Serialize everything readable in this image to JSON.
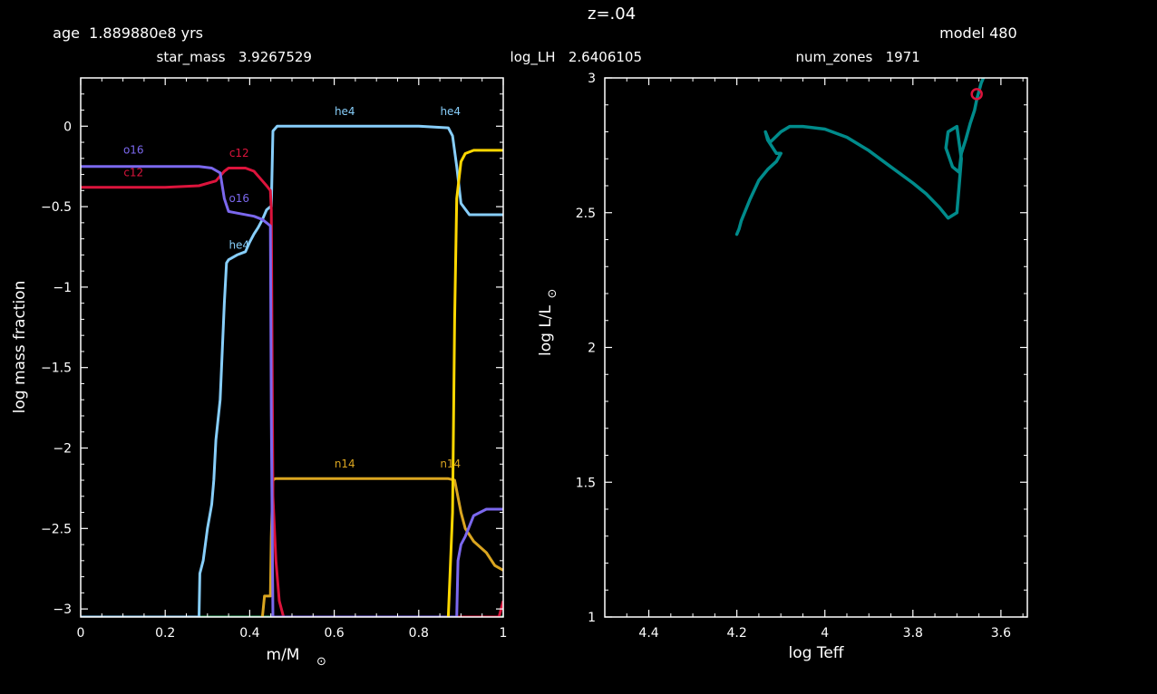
{
  "header": {
    "age_label": "age",
    "age_value": "1.889880e8",
    "age_unit": "yrs",
    "z_label": "z=.04",
    "model_label": "model",
    "model_value": "480",
    "star_mass_label": "star_mass",
    "star_mass_value": "3.9267529",
    "log_lh_label": "log_LH",
    "log_lh_value": "2.6406105",
    "num_zones_label": "num_zones",
    "num_zones_value": "1971"
  },
  "chart_data": [
    {
      "type": "line",
      "ylabel": "log mass fraction",
      "xlabel_main": "m/M",
      "xlabel_sub": "⊙",
      "xlim": [
        0,
        1
      ],
      "ylim": [
        -3.05,
        0.3
      ],
      "xticks": [
        0,
        0.2,
        0.4,
        0.6,
        0.8,
        1
      ],
      "xtick_labels": [
        "0",
        "0.2",
        "0.4",
        "0.6",
        "0.8",
        "1"
      ],
      "yticks": [
        0,
        -0.5,
        -1,
        -1.5,
        -2,
        -2.5,
        -3
      ],
      "ytick_labels": [
        "0",
        "−0.5",
        "−1",
        "−1.5",
        "−2",
        "−2.5",
        "−3"
      ],
      "colors": {
        "he4": "#87cefa",
        "c12": "#dc143c",
        "o16": "#7b68ee",
        "n14": "#daa520",
        "h1": "#ffd700",
        "other": "#3cb371"
      },
      "series": [
        {
          "name": "o16",
          "color": "#7b68ee",
          "x": [
            0,
            0.1,
            0.2,
            0.28,
            0.31,
            0.33,
            0.34,
            0.35,
            0.37,
            0.41,
            0.43,
            0.44,
            0.449,
            0.451,
            0.455,
            0.87,
            0.885,
            0.89,
            0.893,
            0.9,
            0.91,
            0.93,
            0.96,
            1
          ],
          "y": [
            -0.25,
            -0.25,
            -0.25,
            -0.25,
            -0.26,
            -0.29,
            -0.45,
            -0.53,
            -0.54,
            -0.56,
            -0.58,
            -0.6,
            -0.62,
            -1.8,
            -3.05,
            -3.05,
            -3.05,
            -3.05,
            -2.7,
            -2.6,
            -2.55,
            -2.42,
            -2.38,
            -2.38
          ]
        },
        {
          "name": "c12",
          "color": "#dc143c",
          "x": [
            0,
            0.1,
            0.2,
            0.28,
            0.32,
            0.34,
            0.35,
            0.39,
            0.41,
            0.42,
            0.43,
            0.44,
            0.449,
            0.451,
            0.455,
            0.462,
            0.47,
            0.48,
            0.5,
            0.99,
            1
          ],
          "y": [
            -0.38,
            -0.38,
            -0.38,
            -0.37,
            -0.34,
            -0.28,
            -0.26,
            -0.26,
            -0.28,
            -0.31,
            -0.34,
            -0.37,
            -0.4,
            -0.52,
            -2.3,
            -2.7,
            -2.95,
            -3.05,
            -3.05,
            -3.05,
            -2.95
          ]
        },
        {
          "name": "he4",
          "color": "#87cefa",
          "x": [
            0,
            0.28,
            0.282,
            0.29,
            0.3,
            0.31,
            0.315,
            0.32,
            0.33,
            0.335,
            0.34,
            0.345,
            0.35,
            0.37,
            0.39,
            0.4,
            0.41,
            0.42,
            0.43,
            0.44,
            0.449,
            0.451,
            0.455,
            0.465,
            0.6,
            0.8,
            0.87,
            0.88,
            0.89,
            0.9,
            0.92,
            0.95,
            1
          ],
          "y": [
            -3.05,
            -3.05,
            -2.78,
            -2.7,
            -2.5,
            -2.35,
            -2.2,
            -1.95,
            -1.7,
            -1.4,
            -1.1,
            -0.85,
            -0.83,
            -0.8,
            -0.78,
            -0.72,
            -0.67,
            -0.63,
            -0.58,
            -0.52,
            -0.5,
            -0.5,
            -0.03,
            0,
            0,
            0,
            -0.01,
            -0.06,
            -0.25,
            -0.48,
            -0.55,
            -0.55,
            -0.55
          ]
        },
        {
          "name": "n14",
          "color": "#daa520",
          "x": [
            0.43,
            0.435,
            0.44,
            0.445,
            0.449,
            0.451,
            0.455,
            0.46,
            0.5,
            0.7,
            0.87,
            0.885,
            0.9,
            0.91,
            0.93,
            0.96,
            0.98,
            1
          ],
          "y": [
            -3.05,
            -2.92,
            -2.92,
            -2.92,
            -2.92,
            -2.55,
            -2.2,
            -2.19,
            -2.19,
            -2.19,
            -2.19,
            -2.2,
            -2.4,
            -2.5,
            -2.58,
            -2.65,
            -2.73,
            -2.76
          ]
        },
        {
          "name": "h1",
          "color": "#ffd700",
          "x": [
            0.87,
            0.88,
            0.885,
            0.89,
            0.9,
            0.91,
            0.93,
            0.96,
            1
          ],
          "y": [
            -3.05,
            -2.4,
            -1.2,
            -0.45,
            -0.22,
            -0.17,
            -0.15,
            -0.15,
            -0.15
          ]
        },
        {
          "name": "other",
          "color": "#3cb371",
          "x": [
            0,
            1
          ],
          "y": [
            -3.05,
            -3.05
          ]
        }
      ],
      "labels": [
        {
          "text": "o16",
          "x": 0.125,
          "y": -0.17,
          "color": "#7b68ee"
        },
        {
          "text": "c12",
          "x": 0.125,
          "y": -0.31,
          "color": "#dc143c"
        },
        {
          "text": "c12",
          "x": 0.375,
          "y": -0.19,
          "color": "#dc143c"
        },
        {
          "text": "o16",
          "x": 0.375,
          "y": -0.47,
          "color": "#7b68ee"
        },
        {
          "text": "he4",
          "x": 0.375,
          "y": -0.76,
          "color": "#87cefa"
        },
        {
          "text": "he4",
          "x": 0.625,
          "y": 0.07,
          "color": "#87cefa"
        },
        {
          "text": "he4",
          "x": 0.875,
          "y": 0.07,
          "color": "#87cefa"
        },
        {
          "text": "n14",
          "x": 0.625,
          "y": -2.12,
          "color": "#daa520"
        },
        {
          "text": "n14",
          "x": 0.875,
          "y": -2.12,
          "color": "#daa520"
        }
      ]
    },
    {
      "type": "line",
      "xlabel": "log Teff",
      "ylabel_main": "log L/L",
      "ylabel_sub": "⊙",
      "xlim": [
        4.5,
        3.54
      ],
      "ylim": [
        1,
        3
      ],
      "xticks": [
        4.4,
        4.2,
        4,
        3.8,
        3.6
      ],
      "xtick_labels": [
        "4.4",
        "4.2",
        "4",
        "3.8",
        "3.6"
      ],
      "yticks": [
        1,
        1.5,
        2,
        2.5,
        3
      ],
      "ytick_labels": [
        "1",
        "1.5",
        "2",
        "2.5",
        "3"
      ],
      "track_color": "#008b8b",
      "marker_color": "#dc143c",
      "track": {
        "logTeff": [
          4.2,
          4.195,
          4.19,
          4.17,
          4.15,
          4.13,
          4.11,
          4.1,
          4.11,
          4.13,
          4.135,
          4.13,
          4.125,
          4.1,
          4.08,
          4.05,
          4.0,
          3.95,
          3.9,
          3.85,
          3.8,
          3.77,
          3.74,
          3.72,
          3.7,
          3.695,
          3.69,
          3.7,
          3.72,
          3.725,
          3.71,
          3.695,
          3.69,
          3.68,
          3.67,
          3.66,
          3.655,
          3.65,
          3.645,
          3.64
        ],
        "logL": [
          2.42,
          2.44,
          2.47,
          2.55,
          2.62,
          2.66,
          2.69,
          2.72,
          2.72,
          2.77,
          2.8,
          2.78,
          2.76,
          2.8,
          2.82,
          2.82,
          2.81,
          2.78,
          2.73,
          2.67,
          2.61,
          2.57,
          2.52,
          2.48,
          2.5,
          2.6,
          2.7,
          2.82,
          2.8,
          2.74,
          2.67,
          2.65,
          2.72,
          2.77,
          2.83,
          2.88,
          2.92,
          2.95,
          2.98,
          3.0
        ]
      },
      "current": {
        "logTeff": 3.655,
        "logL": 2.94
      }
    }
  ]
}
